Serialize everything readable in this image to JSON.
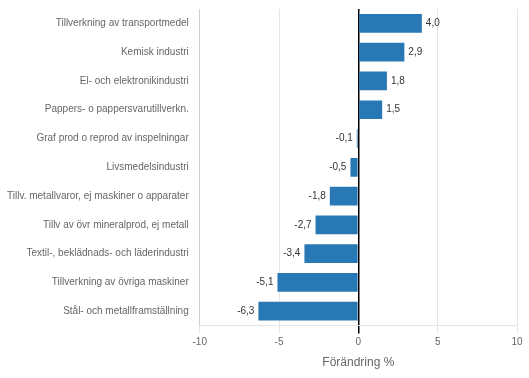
{
  "chart_data": {
    "type": "bar",
    "orientation": "horizontal",
    "categories": [
      "Stål- och metallframställning",
      "Tillverkning av övriga maskiner",
      "Textil-, beklädnads- och läderindustri",
      "Tillv av övr mineralprod, ej metall",
      "Tillv. metallvaror, ej maskiner o apparater",
      "Livsmedelsindustri",
      "Graf prod o reprod av inspelningar",
      "Pappers- o pappersvarutillverkn.",
      "El- och elektronikindustri",
      "Kemisk industri",
      "Tillverkning av transportmedel"
    ],
    "values": [
      -6.3,
      -5.1,
      -3.4,
      -2.7,
      -1.8,
      -0.5,
      -0.1,
      1.5,
      1.8,
      2.9,
      4.0
    ],
    "value_labels": [
      "-6,3",
      "-5,1",
      "-3,4",
      "-2,7",
      "-1,8",
      "-0,5",
      "-0,1",
      "1,5",
      "1,8",
      "2,9",
      "4,0"
    ],
    "data_labels": true,
    "color": "#2878b5",
    "xlabel": "Förändring %",
    "xlim": [
      -10,
      10
    ],
    "xticks": [
      -10,
      -5,
      0,
      5,
      10
    ],
    "grid": true
  }
}
